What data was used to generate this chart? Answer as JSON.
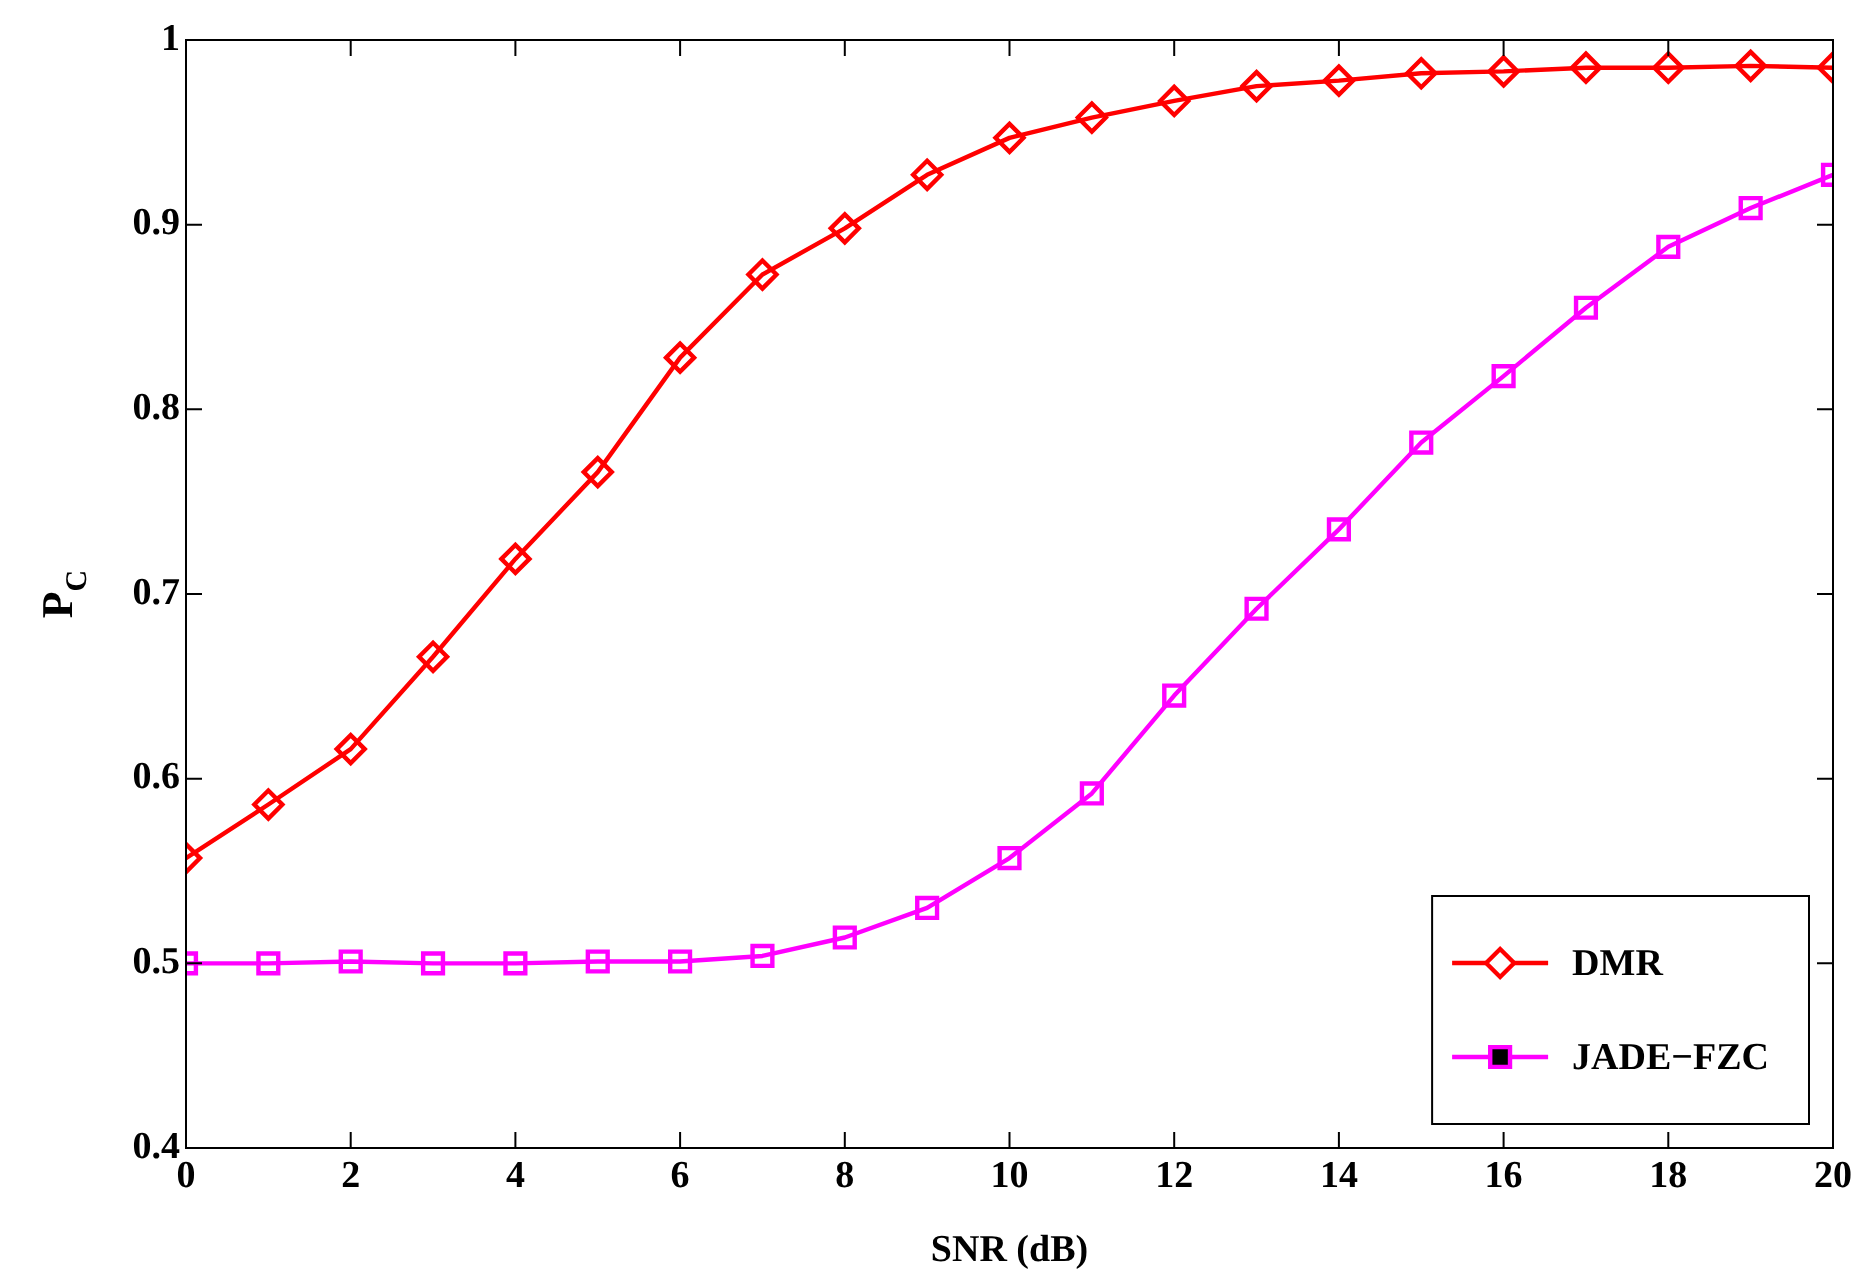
{
  "chart_data": {
    "type": "line",
    "xlabel": "SNR (dB)",
    "ylabel": "P$_{C}$",
    "x": [
      0,
      1,
      2,
      3,
      4,
      5,
      6,
      7,
      8,
      9,
      10,
      11,
      12,
      13,
      14,
      15,
      16,
      17,
      18,
      19,
      20
    ],
    "series": [
      {
        "name": "DMR",
        "color": "#ff0000",
        "marker": "diamond",
        "values": [
          0.557,
          0.586,
          0.616,
          0.666,
          0.719,
          0.766,
          0.828,
          0.873,
          0.898,
          0.927,
          0.947,
          0.958,
          0.967,
          0.975,
          0.978,
          0.982,
          0.983,
          0.985,
          0.985,
          0.986,
          0.985
        ]
      },
      {
        "name": "JADE−FZC",
        "color": "#ff00ff",
        "marker": "square",
        "values": [
          0.5,
          0.5,
          0.501,
          0.5,
          0.5,
          0.501,
          0.501,
          0.504,
          0.514,
          0.53,
          0.557,
          0.592,
          0.645,
          0.692,
          0.735,
          0.782,
          0.818,
          0.855,
          0.888,
          0.909,
          0.927
        ]
      }
    ],
    "xlim": [
      0,
      20
    ],
    "xticks": [
      0,
      2,
      4,
      6,
      8,
      10,
      12,
      14,
      16,
      18,
      20
    ],
    "ylim": [
      0.4,
      1
    ],
    "yticks": [
      0.4,
      0.5,
      0.6,
      0.7,
      0.8,
      0.9,
      1
    ],
    "grid": false,
    "legend": "bottom right",
    "line_style": "solid"
  }
}
